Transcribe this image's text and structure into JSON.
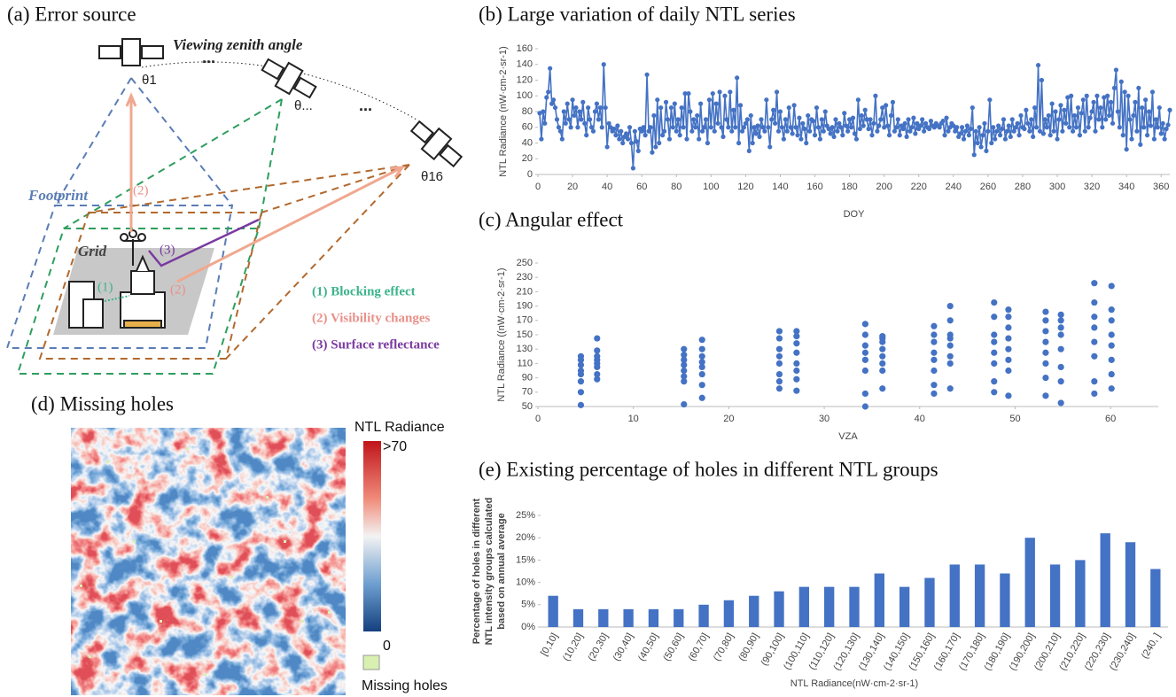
{
  "panel_a": {
    "title": "(a) Error source",
    "viewing_label": "Viewing zenith angle",
    "angles": [
      "θ1",
      "θ...",
      "θ16"
    ],
    "ellipses": [
      "...",
      "..."
    ],
    "footprint": "Footprint",
    "grid": "Grid",
    "markers": [
      "(1)",
      "(2)",
      "(2)",
      "(3)"
    ],
    "legend": [
      "(1) Blocking effect",
      "(2) Visibility changes",
      "(3) Surface reflectance"
    ]
  },
  "panel_d": {
    "title": "(d) Missing holes",
    "colorbar_title": "NTL Radiance",
    "colorbar_max": ">70",
    "colorbar_min": "0",
    "missing_label": "Missing holes"
  },
  "chart_data": [
    {
      "type": "line",
      "title": "(b) Large variation of daily NTL series",
      "x_label": "DOY",
      "y_label": "NTL Radiance (nW·cm-2·sr-1)",
      "color": "#4472c4",
      "markers": true,
      "xlim": [
        0,
        365
      ],
      "xticks": [
        0,
        20,
        40,
        60,
        80,
        100,
        120,
        140,
        160,
        180,
        200,
        220,
        240,
        260,
        280,
        300,
        320,
        340,
        360
      ],
      "ylim": [
        0,
        160
      ],
      "yticks": [
        0,
        20,
        40,
        60,
        80,
        100,
        120,
        140,
        160
      ],
      "x": [
        1,
        2,
        3,
        4,
        5,
        6,
        7,
        8,
        9,
        10,
        11,
        12,
        13,
        14,
        15,
        16,
        17,
        18,
        19,
        20,
        21,
        22,
        23,
        24,
        25,
        26,
        27,
        28,
        29,
        30,
        31,
        32,
        33,
        34,
        35,
        36,
        37,
        38,
        39,
        40,
        41,
        42,
        43,
        44,
        45,
        46,
        47,
        48,
        49,
        50,
        51,
        52,
        53,
        54,
        55,
        56,
        57,
        58,
        59,
        60,
        61,
        62,
        63,
        64,
        65,
        66,
        67,
        68,
        69,
        70,
        71,
        72,
        73,
        74,
        75,
        76,
        77,
        78,
        79,
        80,
        81,
        82,
        83,
        84,
        85,
        86,
        87,
        88,
        89,
        90,
        91,
        92,
        93,
        94,
        95,
        96,
        97,
        98,
        99,
        100,
        101,
        102,
        103,
        104,
        105,
        106,
        107,
        108,
        109,
        110,
        111,
        112,
        113,
        114,
        115,
        116,
        117,
        118,
        119,
        120,
        121,
        122,
        123,
        124,
        125,
        126,
        127,
        128,
        129,
        130,
        131,
        132,
        133,
        134,
        135,
        136,
        137,
        138,
        139,
        140,
        141,
        142,
        143,
        144,
        145,
        146,
        147,
        148,
        149,
        150,
        151,
        152,
        153,
        154,
        155,
        156,
        157,
        158,
        159,
        160,
        161,
        162,
        163,
        164,
        165,
        166,
        167,
        168,
        169,
        170,
        171,
        172,
        173,
        174,
        175,
        176,
        177,
        178,
        179,
        180,
        181,
        182,
        183,
        184,
        185,
        186,
        187,
        188,
        189,
        190,
        191,
        192,
        193,
        194,
        195,
        196,
        197,
        198,
        199,
        200,
        201,
        202,
        203,
        204,
        205,
        206,
        207,
        208,
        209,
        210,
        211,
        212,
        213,
        214,
        215,
        216,
        217,
        218,
        219,
        220,
        221,
        222,
        223,
        224,
        225,
        226,
        227,
        228,
        229,
        230,
        231,
        232,
        233,
        234,
        235,
        236,
        237,
        238,
        239,
        240,
        241,
        242,
        243,
        244,
        245,
        246,
        247,
        248,
        249,
        250,
        251,
        252,
        253,
        254,
        255,
        256,
        257,
        258,
        259,
        260,
        261,
        262,
        263,
        264,
        265,
        266,
        267,
        268,
        269,
        270,
        271,
        272,
        273,
        274,
        275,
        276,
        277,
        278,
        279,
        280,
        281,
        282,
        283,
        284,
        285,
        286,
        287,
        288,
        289,
        290,
        291,
        292,
        293,
        294,
        295,
        296,
        297,
        298,
        299,
        300,
        301,
        302,
        303,
        304,
        305,
        306,
        307,
        308,
        309,
        310,
        311,
        312,
        313,
        314,
        315,
        316,
        317,
        318,
        319,
        320,
        321,
        322,
        323,
        324,
        325,
        326,
        327,
        328,
        329,
        330,
        331,
        332,
        333,
        334,
        335,
        336,
        337,
        338,
        339,
        340,
        341,
        342,
        343,
        344,
        345,
        346,
        347,
        348,
        349,
        350,
        351,
        352,
        353,
        354,
        355,
        356,
        357,
        358,
        359,
        360,
        361,
        362,
        363,
        364,
        365
      ],
      "values": [
        78,
        45,
        80,
        65,
        98,
        105,
        135,
        90,
        95,
        85,
        70,
        60,
        55,
        45,
        80,
        65,
        90,
        70,
        60,
        95,
        75,
        85,
        60,
        80,
        70,
        92,
        65,
        50,
        85,
        70,
        60,
        55,
        80,
        90,
        70,
        85,
        60,
        140,
        85,
        35,
        65,
        60,
        55,
        58,
        50,
        62,
        45,
        55,
        40,
        48,
        52,
        45,
        60,
        40,
        8,
        55,
        42,
        30,
        58,
        55,
        60,
        50,
        127,
        55,
        60,
        28,
        75,
        35,
        95,
        40,
        85,
        50,
        55,
        92,
        70,
        45,
        85,
        60,
        90,
        55,
        70,
        50,
        85,
        60,
        103,
        45,
        103,
        80,
        55,
        70,
        60,
        75,
        45,
        90,
        55,
        60,
        70,
        40,
        95,
        60,
        103,
        55,
        90,
        65,
        105,
        60,
        48,
        100,
        70,
        60,
        105,
        55,
        82,
        60,
        123,
        40,
        88,
        55,
        60,
        65,
        70,
        30,
        75,
        40,
        60,
        52,
        62,
        48,
        70,
        60,
        55,
        95,
        60,
        35,
        70,
        82,
        65,
        105,
        55,
        80,
        60,
        45,
        70,
        55,
        85,
        60,
        52,
        88,
        60,
        50,
        72,
        45,
        65,
        58,
        40,
        75,
        55,
        70,
        68,
        50,
        85,
        60,
        45,
        70,
        55,
        80,
        62,
        58,
        52,
        60,
        48,
        70,
        55,
        65,
        60,
        50,
        78,
        62,
        55,
        70,
        60,
        72,
        52,
        45,
        95,
        58,
        75,
        62,
        82,
        70,
        58,
        70,
        50,
        65,
        100,
        55,
        62,
        70,
        85,
        60,
        88,
        62,
        50,
        75,
        92,
        55,
        60,
        70,
        50,
        62,
        58,
        65,
        48,
        70,
        55,
        60,
        72,
        52,
        65,
        58,
        62,
        70,
        55,
        65,
        60,
        58,
        68,
        62,
        60,
        65,
        62,
        60,
        65,
        68,
        50,
        72,
        55,
        60,
        65,
        62,
        55,
        60,
        48,
        52,
        60,
        45,
        55,
        62,
        50,
        58,
        85,
        25,
        55,
        40,
        60,
        35,
        50,
        65,
        30,
        55,
        95,
        40,
        60,
        45,
        55,
        62,
        50,
        58,
        70,
        45,
        55,
        62,
        48,
        70,
        55,
        60,
        65,
        50,
        75,
        60,
        58,
        82,
        65,
        55,
        70,
        48,
        85,
        60,
        139,
        55,
        120,
        52,
        70,
        60,
        75,
        50,
        90,
        55,
        80,
        45,
        70,
        88,
        55,
        82,
        65,
        98,
        60,
        100,
        55,
        75,
        60,
        85,
        50,
        78,
        95,
        55,
        100,
        60,
        72,
        80,
        92,
        55,
        100,
        70,
        85,
        60,
        98,
        70,
        100,
        75,
        92,
        65,
        110,
        133,
        80,
        60,
        118,
        50,
        105,
        32,
        100,
        70,
        45,
        75,
        92,
        55,
        110,
        38,
        85,
        60,
        95,
        50,
        80,
        62,
        105,
        45,
        70,
        60,
        85,
        52,
        65,
        45,
        58,
        63,
        82
      ]
    },
    {
      "type": "scatter",
      "title": "(c) Angular effect",
      "x_label": "VZA",
      "y_label": "NTL Radiance ((nW·cm-2·sr-1)",
      "color": "#4472c4",
      "xlim": [
        0,
        65
      ],
      "xticks": [
        0,
        10,
        20,
        30,
        40,
        50,
        60
      ],
      "ylim": [
        50,
        250
      ],
      "yticks": [
        50,
        70,
        90,
        110,
        130,
        150,
        170,
        190,
        210,
        230,
        250
      ],
      "x": [
        4.5,
        4.5,
        4.5,
        4.5,
        4.5,
        4.5,
        4.5,
        4.5,
        6.2,
        6.2,
        6.2,
        6.2,
        6.2,
        6.2,
        6.2,
        6.2,
        15.3,
        15.3,
        15.3,
        15.3,
        15.3,
        15.3,
        15.3,
        15.3,
        17.2,
        17.2,
        17.2,
        17.2,
        17.2,
        17.2,
        17.2,
        17.2,
        25.3,
        25.3,
        25.3,
        25.3,
        25.3,
        25.3,
        25.3,
        25.3,
        27.1,
        27.1,
        27.1,
        27.1,
        27.1,
        27.1,
        27.1,
        27.1,
        34.3,
        34.3,
        34.3,
        34.3,
        34.3,
        34.3,
        34.3,
        34.3,
        36.1,
        36.1,
        36.1,
        36.1,
        36.1,
        36.1,
        36.1,
        36.1,
        41.5,
        41.5,
        41.5,
        41.5,
        41.5,
        41.5,
        41.5,
        41.5,
        43.2,
        43.2,
        43.2,
        43.2,
        43.2,
        43.2,
        43.2,
        43.2,
        47.8,
        47.8,
        47.8,
        47.8,
        47.8,
        47.8,
        47.8,
        47.8,
        49.3,
        49.3,
        49.3,
        49.3,
        49.3,
        49.3,
        49.3,
        49.3,
        53.2,
        53.2,
        53.2,
        53.2,
        53.2,
        53.2,
        53.2,
        53.2,
        54.8,
        54.8,
        54.8,
        54.8,
        54.8,
        54.8,
        54.8,
        54.8,
        58.3,
        58.3,
        58.3,
        58.3,
        58.3,
        58.3,
        58.3,
        58.3,
        60.1,
        60.1,
        60.1,
        60.1,
        60.1,
        60.1,
        60.1,
        60.1
      ],
      "values": [
        52,
        70,
        85,
        95,
        100,
        108,
        115,
        120,
        88,
        95,
        105,
        110,
        115,
        120,
        128,
        145,
        53,
        85,
        92,
        100,
        108,
        115,
        122,
        130,
        62,
        80,
        95,
        105,
        112,
        120,
        130,
        143,
        75,
        85,
        95,
        110,
        120,
        130,
        145,
        155,
        72,
        88,
        100,
        110,
        125,
        138,
        148,
        155,
        50,
        68,
        100,
        115,
        125,
        135,
        150,
        165,
        75,
        100,
        110,
        120,
        130,
        140,
        145,
        148,
        68,
        80,
        100,
        115,
        125,
        140,
        150,
        162,
        75,
        110,
        120,
        135,
        145,
        150,
        170,
        190,
        70,
        85,
        110,
        125,
        140,
        150,
        175,
        195,
        65,
        100,
        115,
        130,
        145,
        160,
        175,
        185,
        65,
        90,
        110,
        125,
        140,
        155,
        170,
        182,
        55,
        85,
        105,
        130,
        150,
        160,
        170,
        178,
        68,
        85,
        120,
        140,
        160,
        175,
        195,
        222,
        75,
        95,
        115,
        135,
        150,
        170,
        185,
        218
      ]
    },
    {
      "type": "bar",
      "title": "(e) Existing percentage of holes in different NTL groups",
      "x_label": "NTL Radiance(nW·cm-2·sr-1)",
      "y_label_lines": [
        "Percentage of holes in different",
        "NTL intensity groups calculated",
        "based on annual average"
      ],
      "color": "#4472c4",
      "categories": [
        "[0,10]",
        "(10,20]",
        "(20,30]",
        "(30,40]",
        "(40,50]",
        "(50,60]",
        "(60,70]",
        "(70,80]",
        "(80,90]",
        "(90,100]",
        "(100,110]",
        "(110,120]",
        "(120,130]",
        "(130,140]",
        "(140,150]",
        "(150,160]",
        "(160,170]",
        "(170,180]",
        "(180,190]",
        "(190,200]",
        "(200,210]",
        "(210,220]",
        "(220,230]",
        "(230,240]",
        "(240, ]"
      ],
      "values": [
        7,
        4,
        4,
        4,
        4,
        4,
        5,
        6,
        7,
        8,
        9,
        9,
        9,
        12,
        9,
        11,
        14,
        14,
        12,
        20,
        14,
        15,
        21,
        19,
        13
      ],
      "ylim": [
        0,
        25
      ],
      "yticks": [
        {
          "value": 0,
          "label": "0%"
        },
        {
          "value": 5,
          "label": "5%"
        },
        {
          "value": 10,
          "label": "10%"
        },
        {
          "value": 15,
          "label": "15%"
        },
        {
          "value": 20,
          "label": "20%"
        },
        {
          "value": 25,
          "label": "25%"
        }
      ]
    }
  ]
}
